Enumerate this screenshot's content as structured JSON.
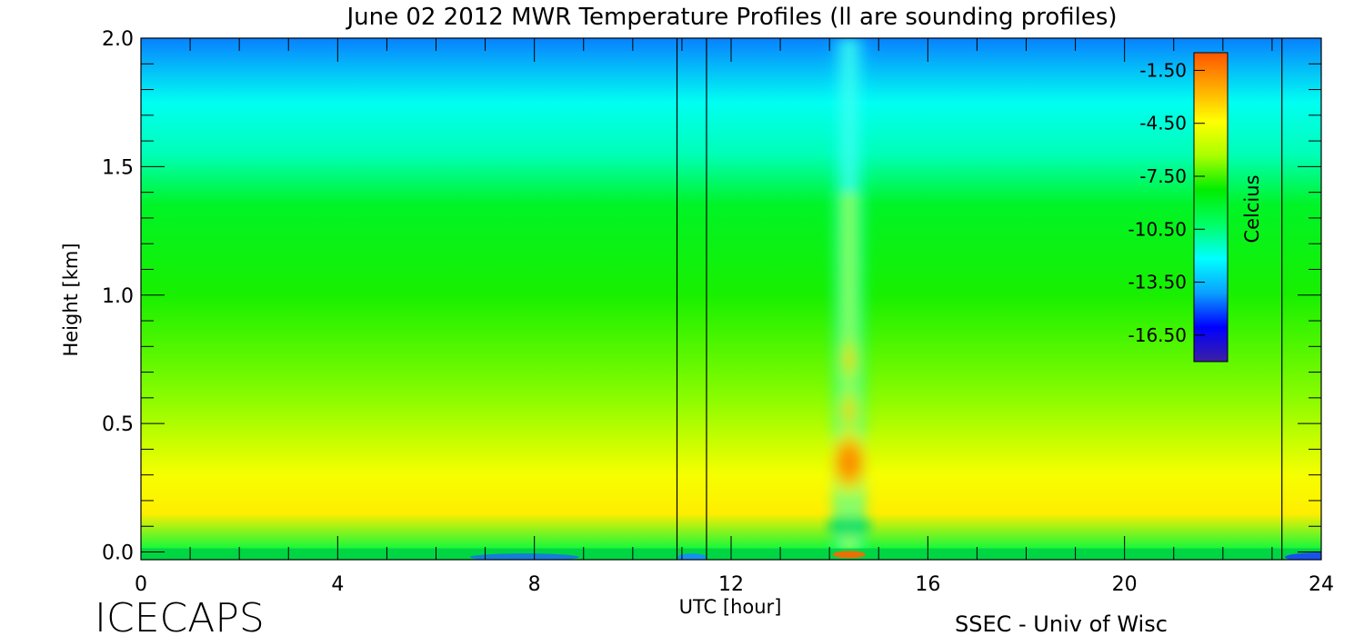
{
  "chart_data": {
    "type": "heatmap",
    "title": "June 02 2012 MWR Temperature Profiles (ll are sounding profiles)",
    "xlabel": "UTC [hour]",
    "ylabel": "Height [km]",
    "xlim": [
      0,
      24
    ],
    "ylim": [
      -0.03,
      2.0
    ],
    "x_ticks": [
      0,
      4,
      8,
      12,
      16,
      20,
      24
    ],
    "x_tick_labels": [
      "0",
      "4",
      "8",
      "12",
      "16",
      "20",
      "24"
    ],
    "y_ticks": [
      0.0,
      0.5,
      1.0,
      1.5,
      2.0
    ],
    "y_tick_labels": [
      "0.0",
      "0.5",
      "1.0",
      "1.5",
      "2.0"
    ],
    "colorbar": {
      "label": "Celcius",
      "range": [
        -18.0,
        -0.5
      ],
      "ticks": [
        -1.5,
        -4.5,
        -7.5,
        -10.5,
        -13.5,
        -16.5
      ],
      "tick_labels": [
        "-1.50",
        "-4.50",
        "-7.50",
        "-10.50",
        "-13.50",
        "-16.50"
      ],
      "colormap": [
        "#3d1fa3",
        "#0000ff",
        "#0aa0ff",
        "#00ffff",
        "#00ff66",
        "#00ee00",
        "#aaff00",
        "#ffff00",
        "#ffaa00",
        "#ff5500"
      ]
    },
    "sounding_times_utc": [
      10.9,
      11.5,
      23.2
    ],
    "temperature_field_summary": {
      "surface_warm_layer_km": [
        0.15,
        0.3
      ],
      "surface_warm_layer_temp_c": -4.0,
      "mid_level_temp_c": -8.0,
      "top_temp_c": -14.5,
      "warm_plume_center_utc": 14.4,
      "warm_plume_core_height_km": 0.35,
      "warm_plume_core_temp_c": -1.5
    }
  },
  "footer": {
    "left_label": "ICECAPS",
    "right_label": "SSEC - Univ of Wisc"
  },
  "colors": {
    "axis": "#000000",
    "background": "#ffffff"
  }
}
